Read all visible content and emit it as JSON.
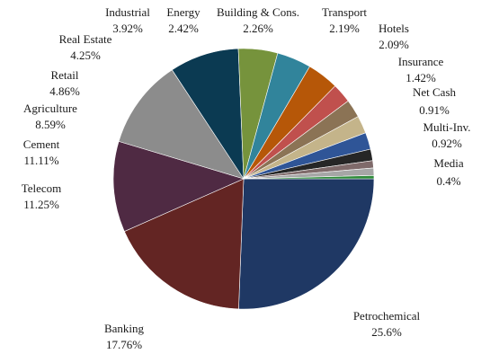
{
  "chart_data": {
    "type": "pie",
    "title": "",
    "slices": [
      {
        "label": "Petrochemical",
        "value": 25.6,
        "display": "25.6%",
        "color": "#1f3864"
      },
      {
        "label": "Banking",
        "value": 17.76,
        "display": "17.76%",
        "color": "#632523"
      },
      {
        "label": "Telecom",
        "value": 11.25,
        "display": "11.25%",
        "color": "#4f2a43"
      },
      {
        "label": "Cement",
        "value": 11.11,
        "display": "11.11%",
        "color": "#8c8c8c"
      },
      {
        "label": "Agriculture",
        "value": 8.59,
        "display": "8.59%",
        "color": "#0b3a52"
      },
      {
        "label": "Retail",
        "value": 4.86,
        "display": "4.86%",
        "color": "#76933c"
      },
      {
        "label": "Real Estate",
        "value": 4.25,
        "display": "4.25%",
        "color": "#31849b"
      },
      {
        "label": "Industrial",
        "value": 3.92,
        "display": "3.92%",
        "color": "#b65708"
      },
      {
        "label": "Energy",
        "value": 2.42,
        "display": "2.42%",
        "color": "#c0504d"
      },
      {
        "label": "Building & Cons.",
        "value": 2.26,
        "display": "2.26%",
        "color": "#8b7355"
      },
      {
        "label": "Transport",
        "value": 2.19,
        "display": "2.19%",
        "color": "#c4b48a"
      },
      {
        "label": "Hotels",
        "value": 2.09,
        "display": "2.09%",
        "color": "#2f5597"
      },
      {
        "label": "Insurance",
        "value": 1.42,
        "display": "1.42%",
        "color": "#262626"
      },
      {
        "label": "Net Cash",
        "value": 0.91,
        "display": "0.91%",
        "color": "#7f6a6a"
      },
      {
        "label": "Multi-Inv.",
        "value": 0.92,
        "display": "0.92%",
        "color": "#a6a6a6"
      },
      {
        "label": "Media",
        "value": 0.4,
        "display": "0.4%",
        "color": "#2e8b3a"
      }
    ]
  }
}
